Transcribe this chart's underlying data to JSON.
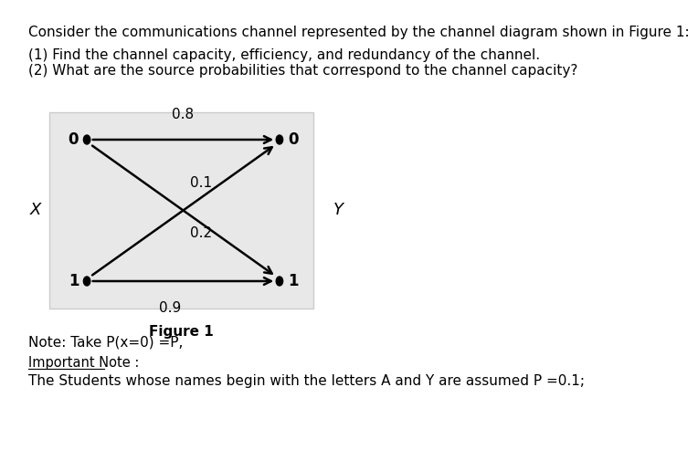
{
  "title_text": "Consider the communications channel represented by the channel diagram shown in Figure 1:",
  "question1": "(1) Find the channel capacity, efficiency, and redundancy of the channel.",
  "question2": "(2) What are the source probabilities that correspond to the channel capacity?",
  "figure_caption": "Figure 1",
  "note1": "Note: Take P(x=0) =P,",
  "note2_bold": "Important Note :",
  "note3": "The Students whose names begin with the letters A and Y are assumed P =0.1;",
  "node_left_top_label": "0",
  "node_left_bot_label": "1",
  "node_right_top_label": "0",
  "node_right_bot_label": "1",
  "label_X": "X",
  "label_Y": "Y",
  "prob_top_straight": "0.8",
  "prob_cross_top": "0.1",
  "prob_cross_bot": "0.2",
  "prob_bot_straight": "0.9",
  "box_bg_color": "#e8e8e8",
  "box_edge_color": "#cccccc",
  "node_color": "black",
  "arrow_color": "black",
  "text_color": "black",
  "font_size_main": 11,
  "font_size_node": 12,
  "font_size_prob": 11,
  "font_size_caption": 11
}
